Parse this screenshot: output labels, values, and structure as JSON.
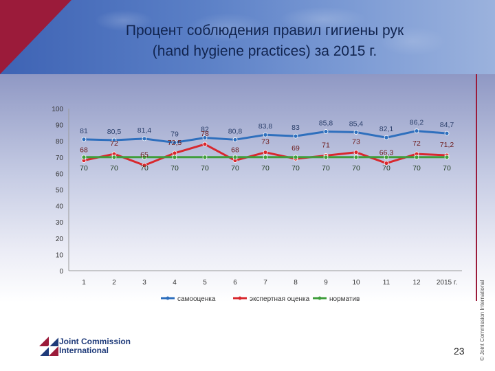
{
  "title_line1": "Процент соблюдения правил гигиены рук",
  "title_line2": "(hand hygiene practices) за 2015 г.",
  "page_number": "23",
  "copyright": "© Joint Commission International",
  "logo": {
    "line1": "Joint Commission",
    "line2": "International"
  },
  "colors": {
    "series1": "#2e6fbd",
    "series2": "#d8282e",
    "series3": "#3f9e3c",
    "accent": "#9b1b3a"
  },
  "chart_data": {
    "type": "line",
    "categories": [
      "1",
      "2",
      "3",
      "4",
      "5",
      "6",
      "7",
      "8",
      "9",
      "10",
      "11",
      "12",
      "2015 г."
    ],
    "ylim": [
      0,
      100
    ],
    "yticks": [
      "0",
      "10",
      "20",
      "30",
      "40",
      "50",
      "60",
      "70",
      "80",
      "90",
      "100"
    ],
    "legend_position": "bottom",
    "series": [
      {
        "name": "самооценка",
        "values": [
          81,
          80.5,
          81.4,
          79,
          82,
          80.8,
          83.8,
          83,
          85.8,
          85.4,
          82.1,
          86.2,
          84.7
        ],
        "labels": [
          "81",
          "80,5",
          "81,4",
          "79",
          "82",
          "80,8",
          "83,8",
          "83",
          "85,8",
          "85,4",
          "82,1",
          "86,2",
          "84,7"
        ]
      },
      {
        "name": "экспертная оценка",
        "values": [
          68,
          72,
          65,
          72.5,
          78,
          68,
          73,
          69,
          71,
          73,
          66.3,
          72,
          71.2
        ],
        "labels": [
          "68",
          "72",
          "65",
          "72,5",
          "78",
          "68",
          "73",
          "69",
          "71",
          "73",
          "66,3",
          "72",
          "71,2"
        ]
      },
      {
        "name": "норматив",
        "values": [
          70,
          70,
          70,
          70,
          70,
          70,
          70,
          70,
          70,
          70,
          70,
          70,
          70
        ],
        "labels": [
          "70",
          "70",
          "70",
          "70",
          "70",
          "70",
          "70",
          "70",
          "70",
          "70",
          "70",
          "70",
          "70"
        ]
      }
    ]
  }
}
